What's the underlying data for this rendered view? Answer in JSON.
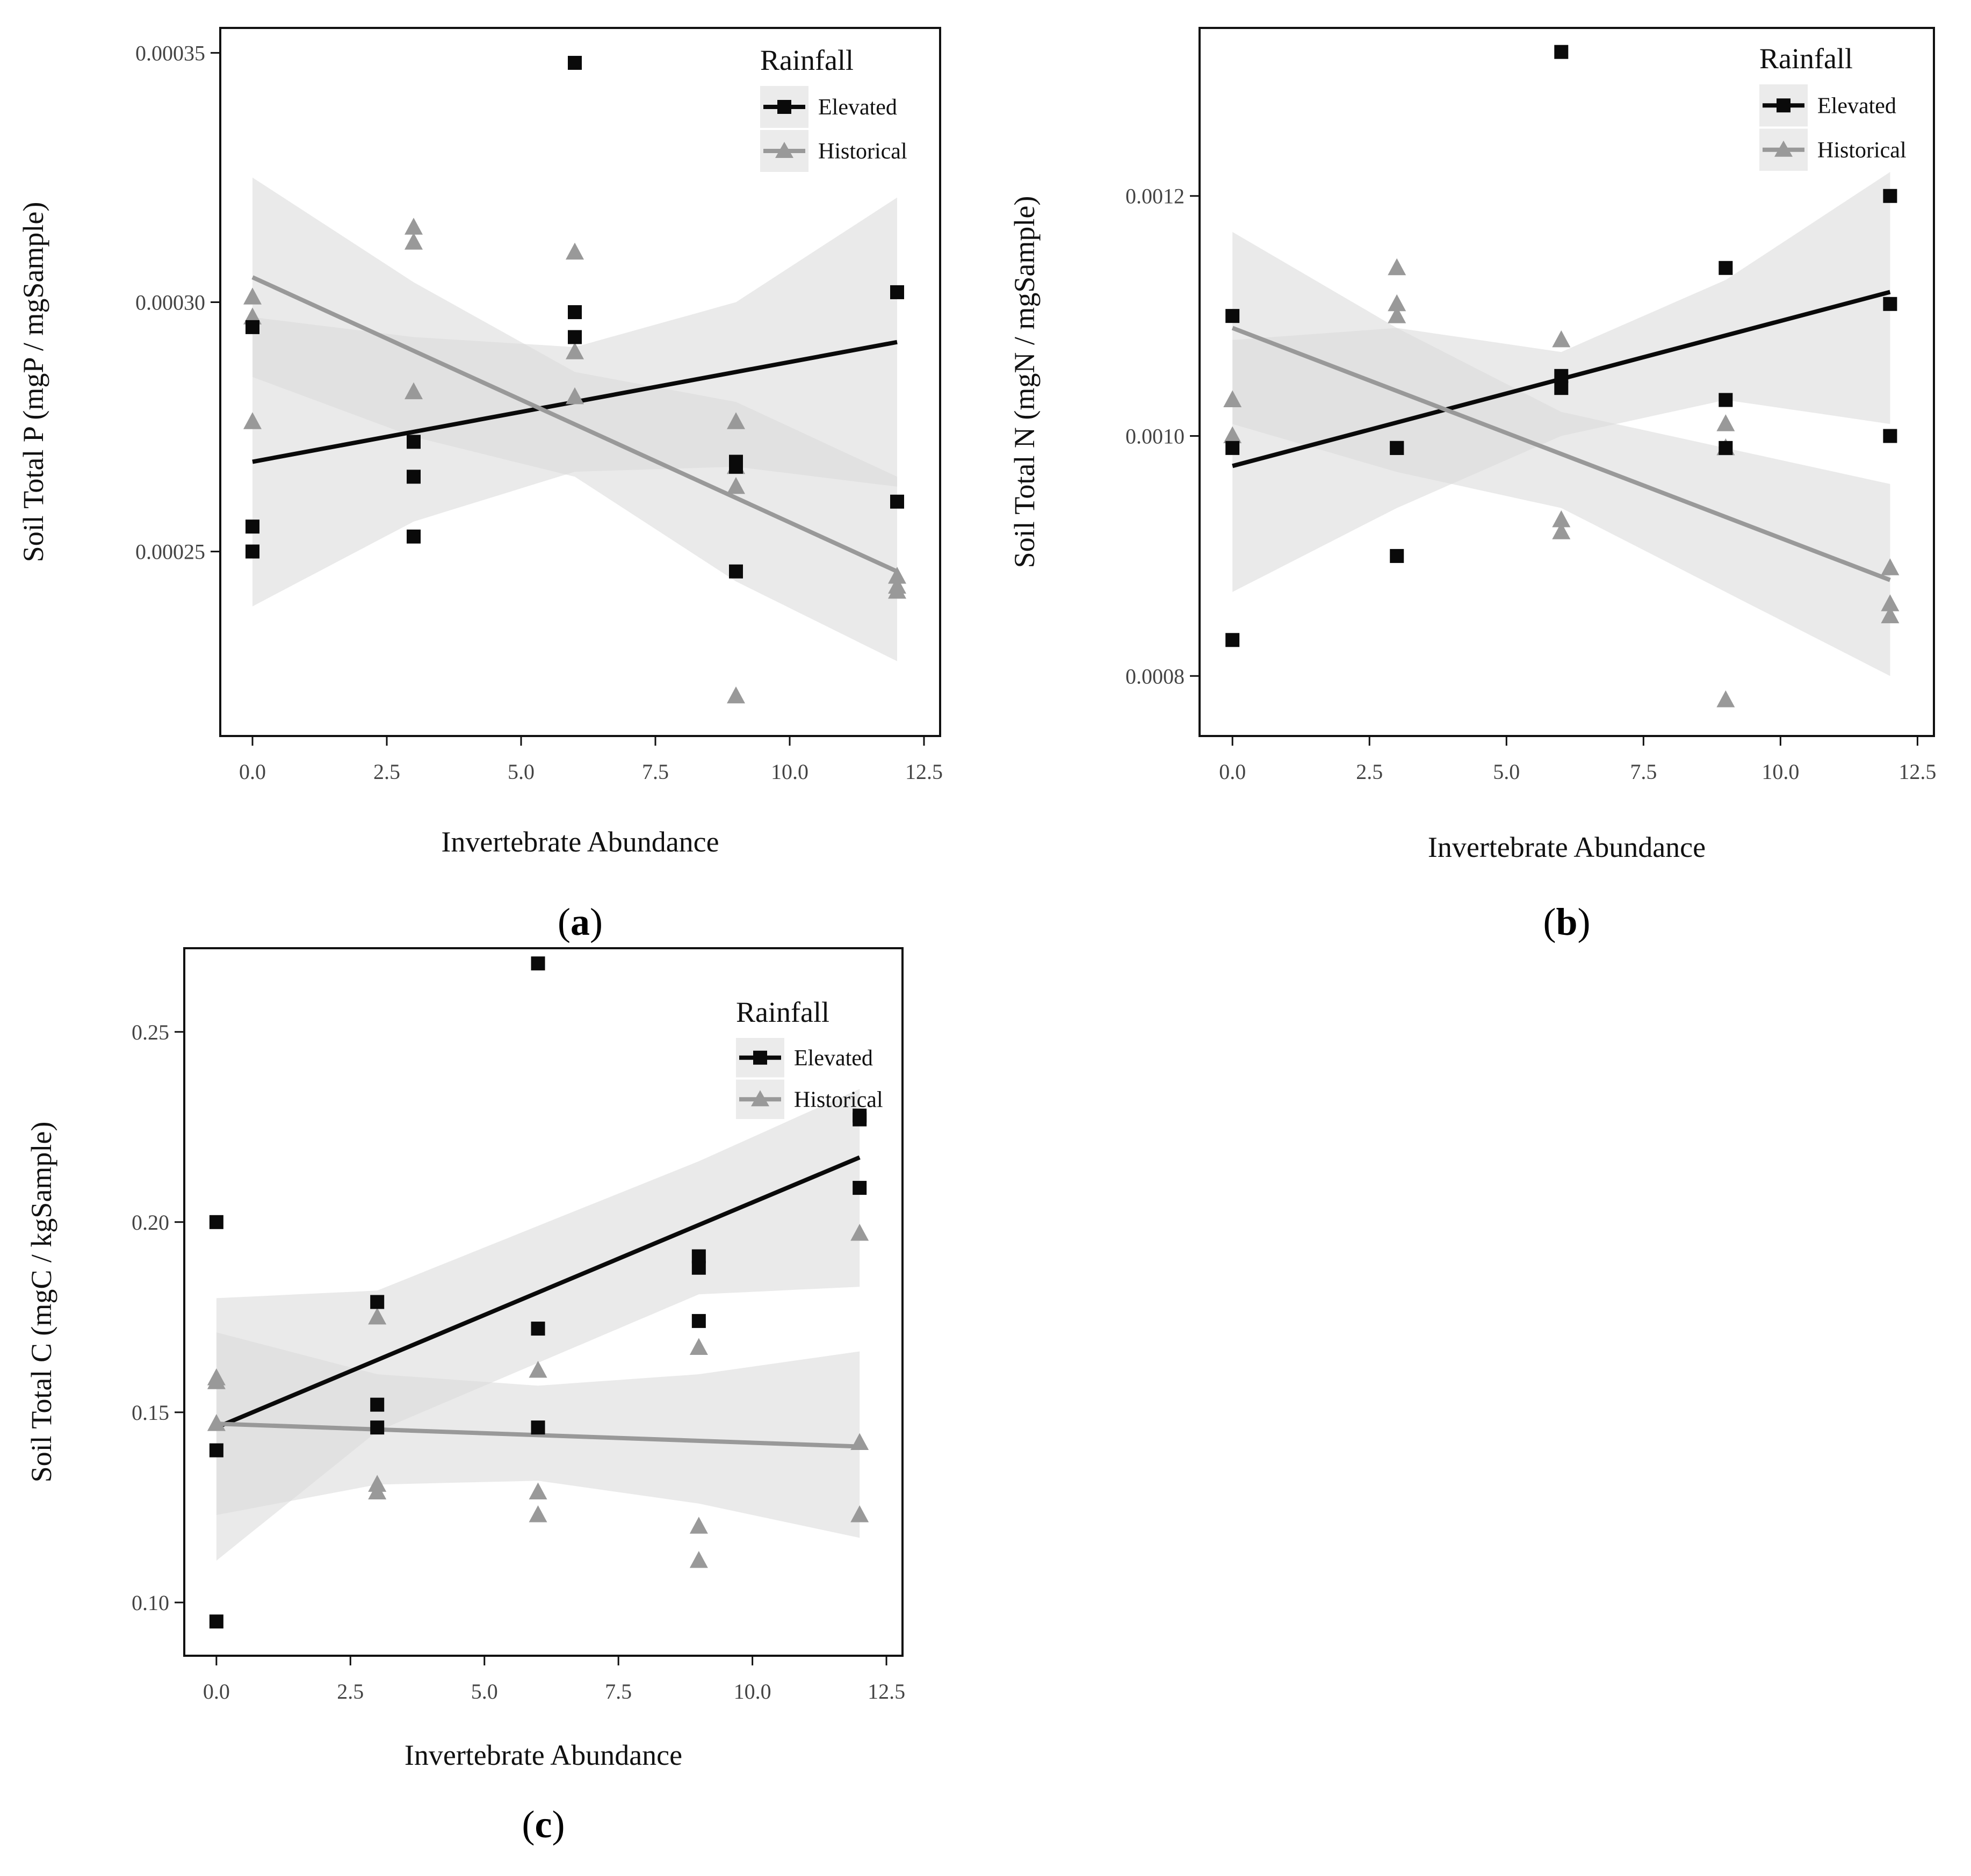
{
  "colors": {
    "elevated": "#0a0a0a",
    "historical": "#999999",
    "band": "#d9d9d9",
    "legend_bg": "#ebebeb"
  },
  "chart_data": [
    {
      "type": "scatter",
      "panel": "(a)",
      "panel_letter": "a",
      "xlabel": "Invertebrate Abundance",
      "ylabel": "Soil Total P (mgP / mgSample)",
      "xlim": [
        -0.6,
        12.8
      ],
      "ylim": [
        0.000213,
        0.000355
      ],
      "xticks": [
        0,
        2.5,
        5,
        7.5,
        10,
        12.5
      ],
      "xtick_labels": [
        "0.0",
        "2.5",
        "5.0",
        "7.5",
        "10.0",
        "12.5"
      ],
      "yticks": [
        0.00025,
        0.0003,
        0.00035
      ],
      "ytick_labels": [
        "0.00025",
        "0.00030",
        "0.00035"
      ],
      "legend": {
        "title": "Rainfall",
        "entries": [
          "Elevated",
          "Historical"
        ],
        "position": "top-right"
      },
      "series": [
        {
          "name": "Elevated",
          "marker": "square",
          "x": [
            0,
            0,
            0,
            3,
            3,
            3,
            6,
            6,
            6,
            9,
            9,
            9,
            12,
            12
          ],
          "y": [
            0.000295,
            0.000255,
            0.00025,
            0.000272,
            0.000265,
            0.000253,
            0.000348,
            0.000298,
            0.000293,
            0.000268,
            0.000267,
            0.000246,
            0.000302,
            0.00026
          ],
          "fit": [
            [
              0,
              0.000268
            ],
            [
              12,
              0.000292
            ]
          ],
          "band": {
            "x": [
              0,
              3,
              6,
              9,
              12
            ],
            "upper": [
              0.000297,
              0.000293,
              0.000291,
              0.0003,
              0.000321
            ],
            "lower": [
              0.000239,
              0.000256,
              0.000266,
              0.000267,
              0.000263
            ]
          }
        },
        {
          "name": "Historical",
          "marker": "triangle",
          "x": [
            0,
            0,
            0,
            3,
            3,
            3,
            6,
            6,
            6,
            9,
            9,
            9,
            9,
            12,
            12,
            12
          ],
          "y": [
            0.000301,
            0.000297,
            0.000276,
            0.000315,
            0.000312,
            0.000282,
            0.00031,
            0.00029,
            0.000281,
            0.000276,
            0.000267,
            0.000263,
            0.000221,
            0.000245,
            0.000243,
            0.000242
          ],
          "fit": [
            [
              0,
              0.000305
            ],
            [
              12,
              0.000246
            ]
          ],
          "band": {
            "x": [
              0,
              3,
              6,
              9,
              12
            ],
            "upper": [
              0.000325,
              0.000304,
              0.000286,
              0.00028,
              0.000265
            ],
            "lower": [
              0.000285,
              0.000273,
              0.000265,
              0.000244,
              0.000228
            ]
          }
        }
      ]
    },
    {
      "type": "scatter",
      "panel": "(b)",
      "panel_letter": "b",
      "xlabel": "Invertebrate Abundance",
      "ylabel": "Soil Total N (mgN / mgSample)",
      "xlim": [
        -0.6,
        12.8
      ],
      "ylim": [
        0.00075,
        0.00134
      ],
      "xticks": [
        0,
        2.5,
        5,
        7.5,
        10,
        12.5
      ],
      "xtick_labels": [
        "0.0",
        "2.5",
        "5.0",
        "7.5",
        "10.0",
        "12.5"
      ],
      "yticks": [
        0.0008,
        0.001,
        0.0012
      ],
      "ytick_labels": [
        "0.0008",
        "0.0010",
        "0.0012"
      ],
      "legend": {
        "title": "Rainfall",
        "entries": [
          "Elevated",
          "Historical"
        ],
        "position": "top-right"
      },
      "series": [
        {
          "name": "Elevated",
          "marker": "square",
          "x": [
            0,
            0,
            0,
            3,
            3,
            3,
            6,
            6,
            6,
            9,
            9,
            9,
            12,
            12,
            12
          ],
          "y": [
            0.0011,
            0.00099,
            0.00083,
            0.00099,
            0.00099,
            0.0009,
            0.00132,
            0.00105,
            0.00104,
            0.00114,
            0.00103,
            0.00099,
            0.0012,
            0.00111,
            0.001
          ],
          "fit": [
            [
              0,
              0.000975
            ],
            [
              12,
              0.00112
            ]
          ],
          "band": {
            "x": [
              0,
              3,
              6,
              9,
              12
            ],
            "upper": [
              0.00108,
              0.00109,
              0.00107,
              0.00113,
              0.00122
            ],
            "lower": [
              0.00087,
              0.00094,
              0.001,
              0.00103,
              0.00101
            ]
          }
        },
        {
          "name": "Historical",
          "marker": "triangle",
          "x": [
            0,
            0,
            3,
            3,
            3,
            6,
            6,
            6,
            9,
            9,
            9,
            12,
            12,
            12
          ],
          "y": [
            0.00103,
            0.001,
            0.00114,
            0.00111,
            0.0011,
            0.00108,
            0.00093,
            0.00092,
            0.00101,
            0.00099,
            0.00078,
            0.00089,
            0.00086,
            0.00085
          ],
          "fit": [
            [
              0,
              0.00109
            ],
            [
              12,
              0.00088
            ]
          ],
          "band": {
            "x": [
              0,
              3,
              6,
              9,
              12
            ],
            "upper": [
              0.00117,
              0.00109,
              0.00102,
              0.00099,
              0.00096
            ],
            "lower": [
              0.00101,
              0.00097,
              0.00094,
              0.00087,
              0.0008
            ]
          }
        }
      ]
    },
    {
      "type": "scatter",
      "panel": "(c)",
      "panel_letter": "c",
      "xlabel": "Invertebrate Abundance",
      "ylabel": "Soil Total C (mgC / kgSample)",
      "xlim": [
        -0.6,
        12.8
      ],
      "ylim": [
        0.086,
        0.272
      ],
      "xticks": [
        0,
        2.5,
        5,
        7.5,
        10,
        12.5
      ],
      "xtick_labels": [
        "0.0",
        "2.5",
        "5.0",
        "7.5",
        "10.0",
        "12.5"
      ],
      "yticks": [
        0.1,
        0.15,
        0.2,
        0.25
      ],
      "ytick_labels": [
        "0.10",
        "0.15",
        "0.20",
        "0.25"
      ],
      "legend": {
        "title": "Rainfall",
        "entries": [
          "Elevated",
          "Historical"
        ],
        "position": "top-right"
      },
      "series": [
        {
          "name": "Elevated",
          "marker": "square",
          "x": [
            0,
            0,
            0,
            3,
            3,
            3,
            6,
            6,
            6,
            9,
            9,
            9,
            12,
            12,
            12
          ],
          "y": [
            0.2,
            0.14,
            0.095,
            0.179,
            0.152,
            0.146,
            0.268,
            0.172,
            0.146,
            0.191,
            0.188,
            0.174,
            0.228,
            0.227,
            0.209
          ],
          "fit": [
            [
              0,
              0.146
            ],
            [
              12,
              0.217
            ]
          ],
          "band": {
            "x": [
              0,
              3,
              6,
              9,
              12
            ],
            "upper": [
              0.18,
              0.182,
              0.199,
              0.216,
              0.235
            ],
            "lower": [
              0.111,
              0.145,
              0.163,
              0.181,
              0.183
            ]
          }
        },
        {
          "name": "Historical",
          "marker": "triangle",
          "x": [
            0,
            0,
            0,
            3,
            3,
            3,
            6,
            6,
            6,
            9,
            9,
            9,
            12,
            12,
            12
          ],
          "y": [
            0.159,
            0.158,
            0.147,
            0.175,
            0.131,
            0.129,
            0.161,
            0.129,
            0.123,
            0.167,
            0.12,
            0.111,
            0.197,
            0.142,
            0.123
          ],
          "fit": [
            [
              0,
              0.147
            ],
            [
              12,
              0.141
            ]
          ],
          "band": {
            "x": [
              0,
              3,
              6,
              9,
              12
            ],
            "upper": [
              0.171,
              0.16,
              0.157,
              0.16,
              0.166
            ],
            "lower": [
              0.123,
              0.131,
              0.132,
              0.126,
              0.117
            ]
          }
        }
      ]
    }
  ]
}
